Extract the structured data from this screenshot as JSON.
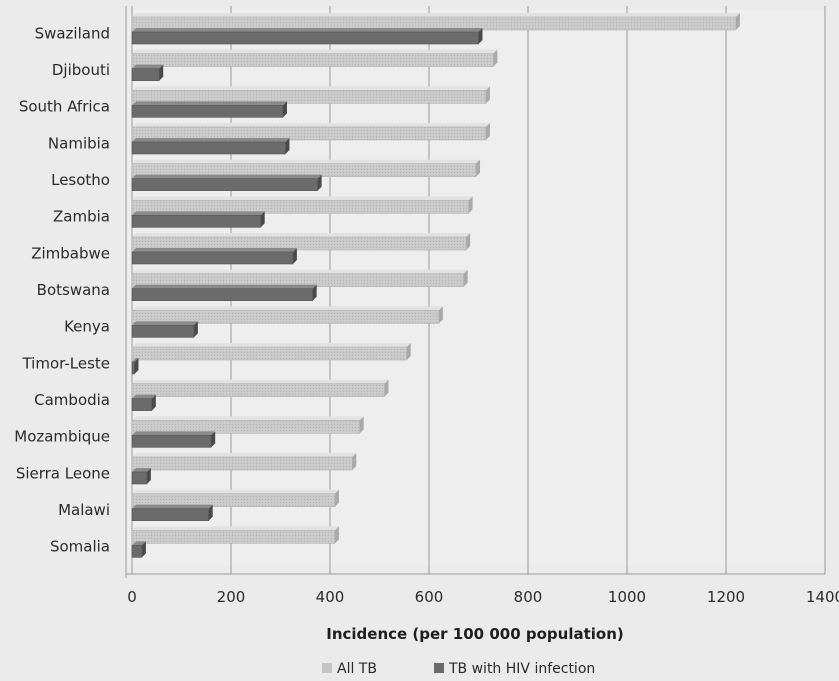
{
  "chart_data": {
    "type": "bar",
    "orientation": "horizontal",
    "title": "",
    "xlabel": "Incidence (per 100 000 population)",
    "ylabel": "",
    "xlim": [
      0,
      1400
    ],
    "xticks": [
      0,
      200,
      400,
      600,
      800,
      1000,
      1200,
      1400
    ],
    "grid": true,
    "legend_position": "bottom",
    "categories": [
      "Swaziland",
      "Djibouti",
      "South Africa",
      "Namibia",
      "Lesotho",
      "Zambia",
      "Zimbabwe",
      "Botswana",
      "Kenya",
      "Timor-Leste",
      "Cambodia",
      "Mozambique",
      "Sierra Leone",
      "Malawi",
      "Somalia"
    ],
    "series": [
      {
        "name": "All TB",
        "color": "#c8c8c8",
        "values": [
          1220,
          730,
          715,
          715,
          695,
          680,
          675,
          670,
          620,
          555,
          510,
          460,
          445,
          410,
          410
        ]
      },
      {
        "name": "TB with HIV infection",
        "color": "#6b6b6b",
        "values": [
          700,
          55,
          305,
          310,
          375,
          260,
          325,
          365,
          125,
          5,
          40,
          160,
          30,
          155,
          20
        ]
      }
    ]
  }
}
